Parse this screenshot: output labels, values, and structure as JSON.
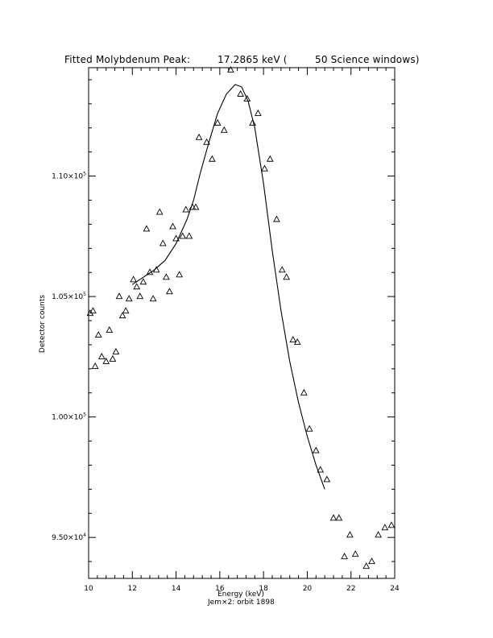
{
  "title": {
    "prefix": "Fitted Molybdenum Peak:",
    "value": "17.2865 keV (",
    "suffix": "50 Science windows)"
  },
  "footer": "Jem×2: orbit 1898",
  "chart_data": {
    "type": "scatter",
    "xlabel": "Energy (keV)",
    "ylabel": "Detector counts",
    "xlim": [
      10,
      24
    ],
    "ylim": [
      93300,
      114500
    ],
    "x_ticks": [
      10,
      12,
      14,
      16,
      18,
      20,
      22,
      24
    ],
    "y_ticks": [
      {
        "value": 95000,
        "mant": "9.50×10",
        "exp": "4"
      },
      {
        "value": 100000,
        "mant": "1.00×10",
        "exp": "5"
      },
      {
        "value": 105000,
        "mant": "1.05×10",
        "exp": "5"
      },
      {
        "value": 110000,
        "mant": "1.10×10",
        "exp": "5"
      }
    ],
    "grid": false,
    "series": [
      {
        "marker": "triangle",
        "x": [
          10.07,
          10.2,
          10.3,
          10.45,
          10.6,
          10.8,
          10.95,
          11.1,
          11.25,
          11.4,
          11.55,
          11.7,
          11.85,
          12.05,
          12.2,
          12.35,
          12.5,
          12.65,
          12.8,
          12.95,
          13.1,
          13.25,
          13.4,
          13.55,
          13.7,
          13.85,
          14.0,
          14.15,
          14.3,
          14.45,
          14.6,
          14.75,
          14.9,
          15.05,
          15.4,
          15.65,
          15.9,
          16.2,
          16.5,
          16.95,
          17.25,
          17.5,
          17.75,
          18.05,
          18.3,
          18.6,
          18.85,
          19.05,
          19.35,
          19.55,
          19.85,
          20.1,
          20.4,
          20.6,
          20.9,
          21.2,
          21.45,
          21.7,
          21.95,
          22.2,
          22.7,
          22.95,
          23.25,
          23.55,
          23.85
        ],
        "y": [
          104300,
          104400,
          102100,
          103400,
          102500,
          102300,
          103600,
          102400,
          102700,
          105000,
          104200,
          104400,
          104900,
          105700,
          105400,
          105000,
          105600,
          107800,
          106000,
          104900,
          106100,
          108500,
          107200,
          105800,
          105200,
          107900,
          107400,
          105900,
          107500,
          108600,
          107500,
          108700,
          108700,
          111600,
          111400,
          110700,
          112200,
          111900,
          114400,
          113400,
          113200,
          112200,
          112600,
          110300,
          110700,
          108200,
          106100,
          105800,
          103200,
          103100,
          101000,
          99500,
          98600,
          97800,
          97400,
          95800,
          95800,
          94200,
          95100,
          94300,
          93800,
          94000,
          95100,
          95400,
          95500
        ]
      },
      {
        "type": "line",
        "x": [
          12.0,
          12.5,
          13.0,
          13.5,
          14.0,
          14.5,
          14.8,
          15.1,
          15.5,
          15.9,
          16.3,
          16.7,
          17.0,
          17.3,
          17.6,
          18.0,
          18.4,
          18.8,
          19.2,
          19.6,
          20.0,
          20.4,
          20.8
        ],
        "y": [
          105500,
          105800,
          106100,
          106500,
          107200,
          108200,
          109000,
          110100,
          111400,
          112600,
          113400,
          113800,
          113700,
          113100,
          112000,
          109700,
          106900,
          104400,
          102300,
          100600,
          99200,
          98000,
          97000
        ]
      }
    ]
  }
}
